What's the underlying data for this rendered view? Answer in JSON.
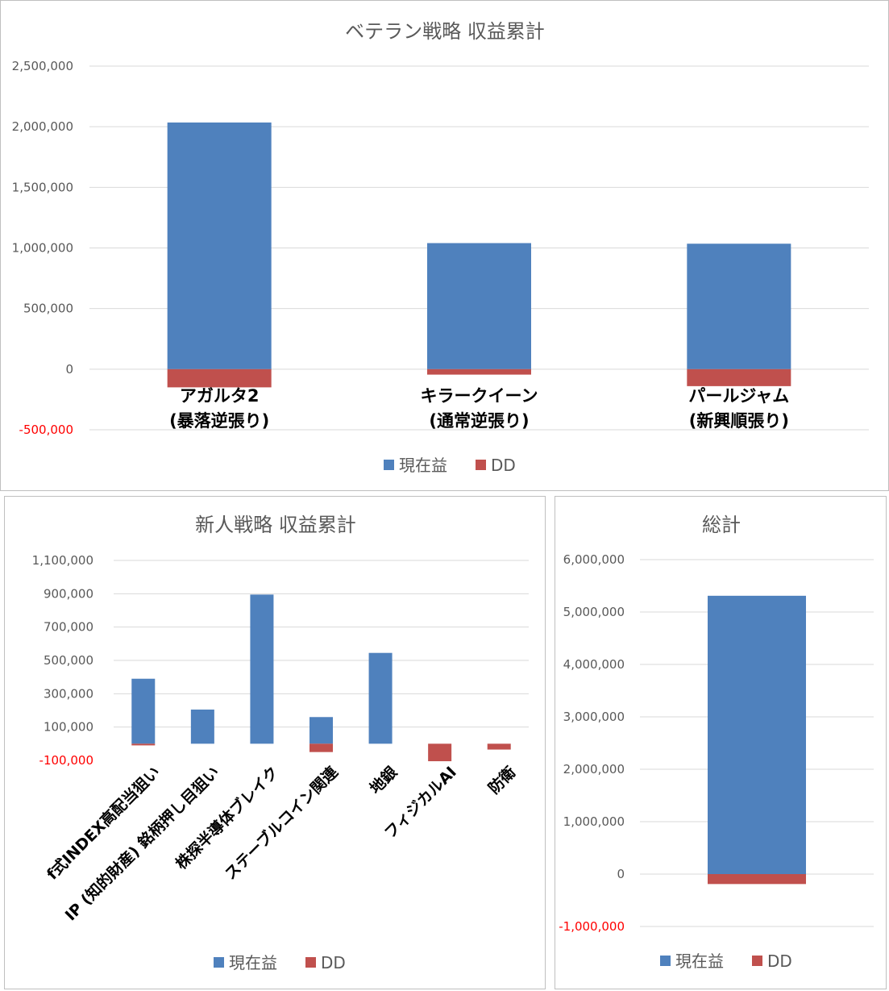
{
  "colors": {
    "current": "#4f81bd",
    "dd": "#c0504d",
    "grid": "#d9d9d9",
    "axis_neg": "#ff0000"
  },
  "legend": {
    "current_label": "現在益",
    "dd_label": "DD"
  },
  "chart_data": [
    {
      "type": "bar",
      "title": "ベテラン戦略 収益累計",
      "categories": [
        [
          "アガルタ2",
          "(暴落逆張り)"
        ],
        [
          "キラークイーン",
          "(通常逆張り)"
        ],
        [
          "パールジャム",
          "(新興順張り)"
        ]
      ],
      "series": [
        {
          "name": "現在益",
          "values": [
            2035000,
            1040000,
            1035000
          ]
        },
        {
          "name": "DD",
          "values": [
            -150000,
            -45000,
            -140000
          ]
        }
      ],
      "ylim": [
        -500000,
        2500000
      ],
      "ytick_step": 500000,
      "yticks": [
        "-500,000",
        "0",
        "500,000",
        "1,000,000",
        "1,500,000",
        "2,000,000",
        "2,500,000"
      ],
      "grid": true,
      "legend_position": "bottom"
    },
    {
      "type": "bar",
      "title": "新人戦略 収益累計",
      "categories": [
        "f式INDEX高配当狙い",
        "IP (知的財産) 銘柄押し目狙い",
        "株探半導体ブレイク",
        "ステーブルコイン関連",
        "地銀",
        "フィジカルAI",
        "防衛"
      ],
      "series": [
        {
          "name": "現在益",
          "values": [
            390000,
            205000,
            895000,
            160000,
            545000,
            0,
            0
          ]
        },
        {
          "name": "DD",
          "values": [
            -10000,
            0,
            0,
            -50000,
            0,
            -105000,
            -35000
          ]
        }
      ],
      "ylim": [
        -100000,
        1100000
      ],
      "ytick_step": 200000,
      "yticks": [
        "-100,000",
        "100,000",
        "300,000",
        "500,000",
        "700,000",
        "900,000",
        "1,100,000"
      ],
      "grid": true,
      "legend_position": "bottom"
    },
    {
      "type": "bar",
      "title": "総計",
      "categories": [
        ""
      ],
      "series": [
        {
          "name": "現在益",
          "values": [
            5310000
          ]
        },
        {
          "name": "DD",
          "values": [
            -190000
          ]
        }
      ],
      "ylim": [
        -1000000,
        6000000
      ],
      "ytick_step": 1000000,
      "yticks": [
        "-1,000,000",
        "0",
        "1,000,000",
        "2,000,000",
        "3,000,000",
        "4,000,000",
        "5,000,000",
        "6,000,000"
      ],
      "grid": true,
      "legend_position": "bottom"
    }
  ]
}
